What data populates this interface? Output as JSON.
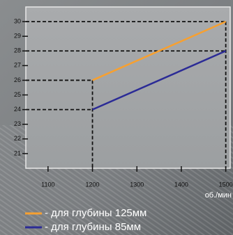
{
  "chart_data": {
    "type": "line",
    "x": [
      1200,
      1500
    ],
    "series": [
      {
        "name": "- для глубины 125мм",
        "color": "#f7a030",
        "values": [
          26,
          30
        ]
      },
      {
        "name": "- для глубины 85мм",
        "color": "#2b2b96",
        "values": [
          24,
          28
        ]
      }
    ],
    "xlim": [
      1050,
      1510
    ],
    "ylim": [
      20,
      31
    ],
    "xticks": [
      1100,
      1200,
      1300,
      1400,
      1500
    ],
    "yticks": [
      21,
      22,
      23,
      24,
      25,
      26,
      27,
      28,
      29,
      30
    ],
    "x_label": "об./мин"
  }
}
